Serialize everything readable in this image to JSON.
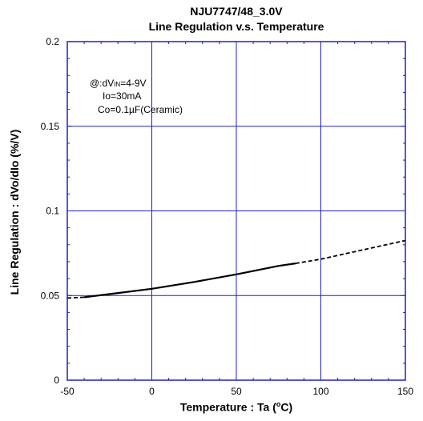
{
  "chart_data": {
    "type": "line",
    "title": "NJU7747/48_3.0V",
    "subtitle": "Line Regulation v.s. Temperature",
    "xlabel_prefix": "Temperature : Ta (",
    "xlabel_unit_sup": "o",
    "xlabel_suffix": "C)",
    "ylabel": "Line Regulation : dVo/dIo (%/V)",
    "xlim": [
      -50,
      150
    ],
    "ylim": [
      0,
      0.2
    ],
    "x_ticks": [
      "-50",
      "0",
      "50",
      "100",
      "150"
    ],
    "y_ticks": [
      "0",
      "0.05",
      "0.1",
      "0.15",
      "0.2"
    ],
    "x_tick_values": [
      -50,
      0,
      50,
      100,
      150
    ],
    "y_tick_values": [
      0,
      0.05,
      0.1,
      0.15,
      0.2
    ],
    "grid": true,
    "annotations": {
      "line1_prefix": "@:dV",
      "line1_sub": "IN",
      "line1_suffix": "=4-9V",
      "line2": "Io=30mA",
      "line3": "Co=0.1µF(Ceramic)"
    },
    "series": [
      {
        "style": "dashed",
        "x": [
          -50,
          -40
        ],
        "y": [
          0.0485,
          0.049
        ]
      },
      {
        "style": "solid",
        "x": [
          -40,
          -20,
          0,
          25,
          50,
          75,
          85
        ],
        "y": [
          0.049,
          0.0515,
          0.054,
          0.058,
          0.0625,
          0.0675,
          0.069
        ]
      },
      {
        "style": "dashed",
        "x": [
          85,
          100,
          125,
          150
        ],
        "y": [
          0.069,
          0.0715,
          0.077,
          0.0825
        ]
      }
    ],
    "colors": {
      "grid": "#2020c0",
      "line": "#000000"
    }
  }
}
